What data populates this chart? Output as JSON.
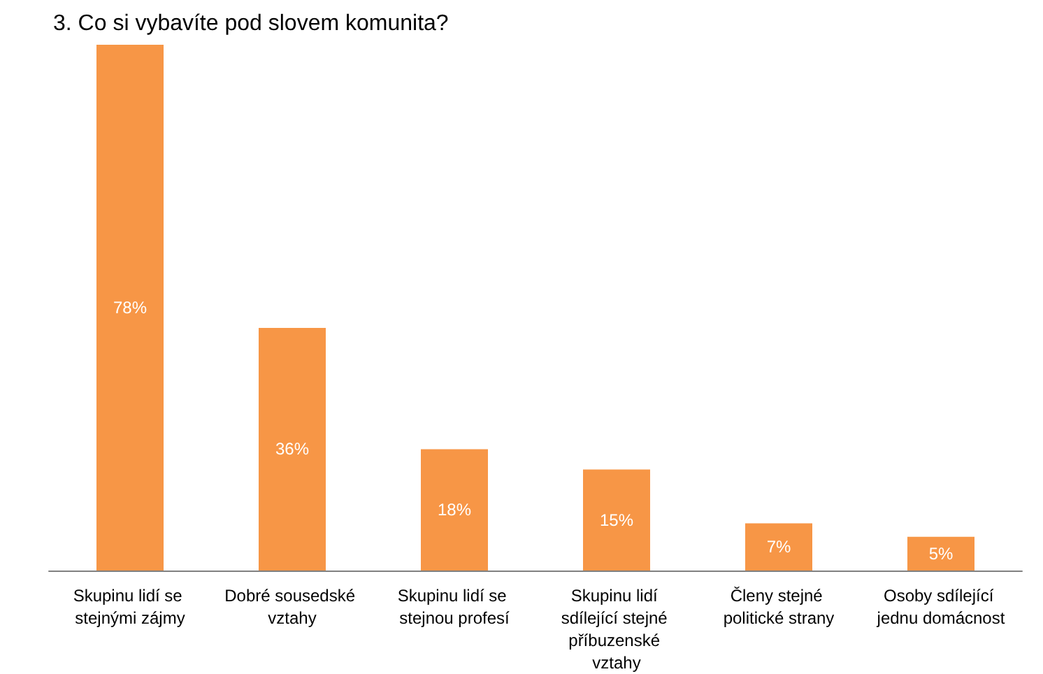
{
  "chart_data": {
    "type": "bar",
    "title": "3. Co si vybavíte pod slovem komunita?",
    "categories": [
      "Skupinu lidí se stejnými zájmy",
      "Dobré sousedské vztahy",
      "Skupinu lidí se stejnou profesí",
      "Skupinu lidí sdílející stejné příbuzenské vztahy",
      "Členy stejné politické strany",
      "Osoby sdílející jednu domácnost"
    ],
    "values": [
      78,
      36,
      18,
      15,
      7,
      5
    ],
    "value_labels": [
      "78%",
      "36%",
      "18%",
      "15%",
      "7%",
      "5%"
    ],
    "color": "#f79646"
  }
}
